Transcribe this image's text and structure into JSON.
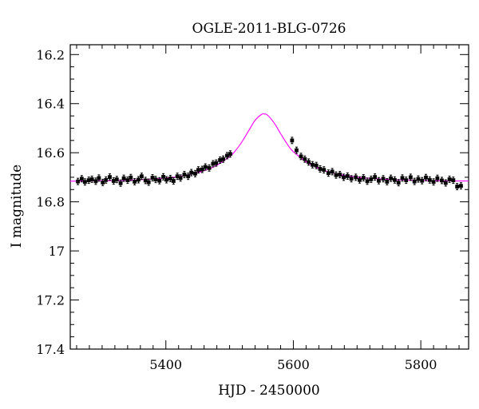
{
  "chart_data": {
    "type": "scatter",
    "title": "OGLE-2011-BLG-0726",
    "xlabel": "HJD - 2450000",
    "ylabel": "I magnitude",
    "xlim": [
      5250,
      5875
    ],
    "ylim": [
      17.4,
      16.16
    ],
    "y_inverted": true,
    "x_ticks": [
      5400,
      5600,
      5800
    ],
    "y_ticks": [
      16.2,
      16.4,
      16.6,
      16.8,
      17.0,
      17.2,
      17.4
    ],
    "y_tick_labels": [
      "16.2",
      "16.4",
      "16.6",
      "16.8",
      "17",
      "17.2",
      "17.4"
    ],
    "grid": false,
    "legend": "none",
    "series": [
      {
        "kind": "points",
        "color": "#000000",
        "x": [
          5262,
          5268,
          5273,
          5279,
          5284,
          5290,
          5295,
          5301,
          5306,
          5312,
          5318,
          5323,
          5329,
          5334,
          5340,
          5345,
          5351,
          5357,
          5362,
          5368,
          5373,
          5379,
          5384,
          5390,
          5396,
          5401,
          5407,
          5412,
          5418,
          5423,
          5429,
          5435,
          5440,
          5446,
          5451,
          5457,
          5462,
          5468,
          5474,
          5479,
          5485,
          5490,
          5496,
          5501,
          5598,
          5605,
          5612,
          5618,
          5624,
          5630,
          5636,
          5642,
          5648,
          5655,
          5661,
          5667,
          5673,
          5679,
          5685,
          5691,
          5698,
          5704,
          5710,
          5716,
          5722,
          5728,
          5734,
          5741,
          5747,
          5753,
          5759,
          5765,
          5771,
          5777,
          5784,
          5790,
          5796,
          5802,
          5808,
          5814,
          5820,
          5826,
          5833,
          5839,
          5845,
          5851,
          5857,
          5863
        ],
        "y": [
          16.717,
          16.706,
          16.719,
          16.712,
          16.708,
          16.716,
          16.703,
          16.721,
          16.711,
          16.699,
          16.715,
          16.709,
          16.724,
          16.704,
          16.712,
          16.701,
          16.718,
          16.71,
          16.696,
          16.713,
          16.72,
          16.702,
          16.709,
          16.714,
          16.698,
          16.71,
          16.705,
          16.715,
          16.696,
          16.703,
          16.689,
          16.696,
          16.681,
          16.685,
          16.67,
          16.668,
          16.658,
          16.662,
          16.645,
          16.642,
          16.63,
          16.626,
          16.612,
          16.605,
          16.55,
          16.59,
          16.615,
          16.626,
          16.638,
          16.649,
          16.652,
          16.666,
          16.67,
          16.683,
          16.677,
          16.691,
          16.689,
          16.7,
          16.695,
          16.706,
          16.7,
          16.711,
          16.702,
          16.716,
          16.708,
          16.699,
          16.714,
          16.706,
          16.718,
          16.704,
          16.711,
          16.722,
          16.703,
          16.712,
          16.7,
          16.717,
          16.707,
          16.714,
          16.701,
          16.711,
          16.719,
          16.704,
          16.713,
          16.723,
          16.708,
          16.712,
          16.738,
          16.735
        ],
        "err": 0.013
      },
      {
        "kind": "model",
        "color": "#ff00ff",
        "x": [
          5250,
          5275,
          5300,
          5325,
          5350,
          5375,
          5400,
          5425,
          5450,
          5475,
          5500,
          5510,
          5520,
          5530,
          5540,
          5550,
          5555,
          5560,
          5570,
          5580,
          5590,
          5600,
          5625,
          5650,
          5675,
          5700,
          5725,
          5750,
          5775,
          5800,
          5825,
          5850,
          5875
        ],
        "y": [
          16.716,
          16.715,
          16.714,
          16.713,
          16.711,
          16.708,
          16.703,
          16.695,
          16.681,
          16.658,
          16.616,
          16.589,
          16.553,
          16.51,
          16.468,
          16.444,
          16.442,
          16.448,
          16.479,
          16.522,
          16.563,
          16.596,
          16.645,
          16.674,
          16.69,
          16.7,
          16.705,
          16.709,
          16.711,
          16.713,
          16.714,
          16.715,
          16.715
        ]
      }
    ]
  }
}
